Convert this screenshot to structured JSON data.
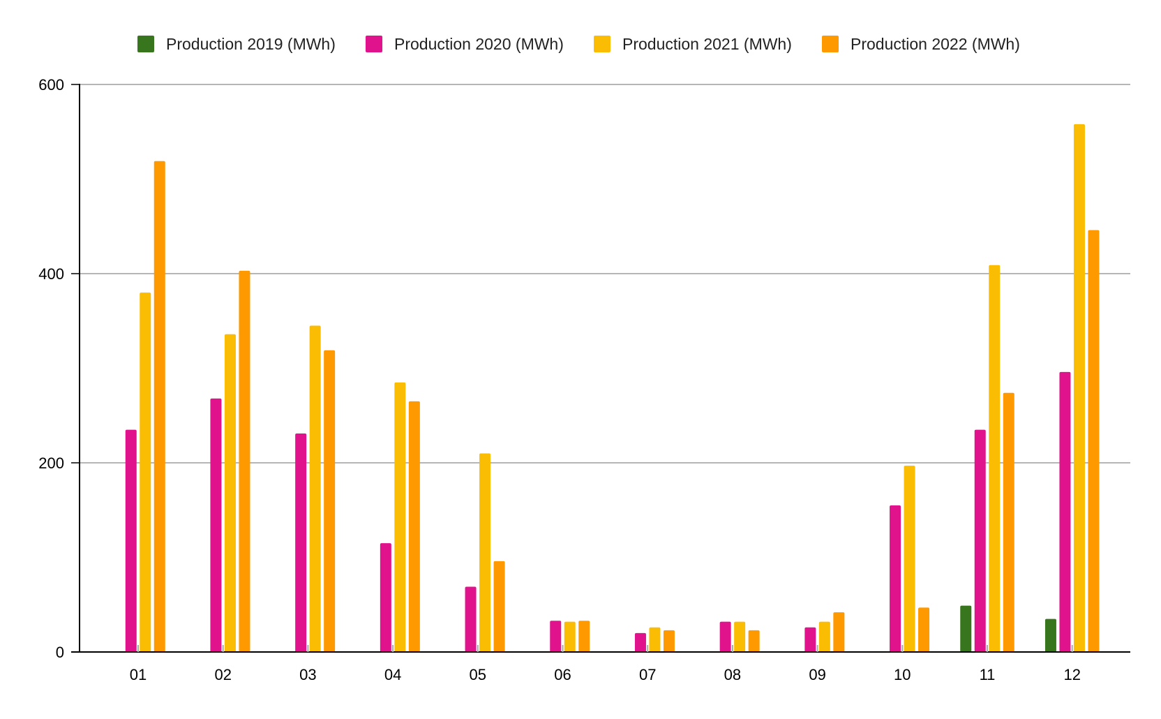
{
  "chart_data": {
    "type": "bar",
    "title": "",
    "xlabel": "",
    "ylabel": "",
    "categories": [
      "01",
      "02",
      "03",
      "04",
      "05",
      "06",
      "07",
      "08",
      "09",
      "10",
      "11",
      "12"
    ],
    "series": [
      {
        "name": "Production 2019 (MWh)",
        "color": "#38761d",
        "values": [
          null,
          null,
          null,
          null,
          null,
          null,
          null,
          null,
          null,
          null,
          49,
          35
        ]
      },
      {
        "name": "Production 2020 (MWh)",
        "color": "#e0138c",
        "values": [
          235,
          268,
          231,
          115,
          69,
          33,
          20,
          32,
          26,
          155,
          235,
          296
        ]
      },
      {
        "name": "Production 2021 (MWh)",
        "color": "#fbbc04",
        "values": [
          380,
          336,
          345,
          285,
          210,
          32,
          26,
          32,
          32,
          197,
          409,
          558
        ]
      },
      {
        "name": "Production 2022 (MWh)",
        "color": "#ff9900",
        "values": [
          519,
          403,
          319,
          265,
          96,
          33,
          23,
          23,
          42,
          47,
          274,
          446
        ]
      }
    ],
    "ylim": [
      0,
      600
    ],
    "yticks": [
      0,
      200,
      400,
      600
    ],
    "grid": true,
    "legend_position": "top"
  }
}
